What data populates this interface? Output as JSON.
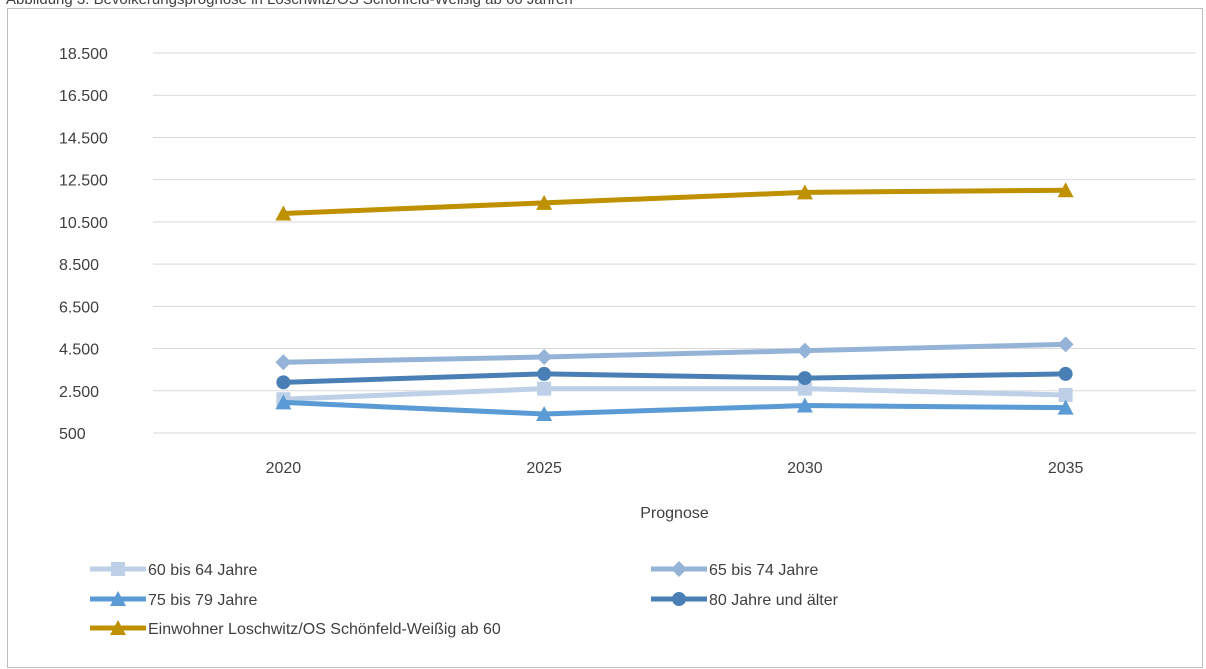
{
  "caption": "Abbildung 3: Bevölkerungsprognose in Loschwitz/OS Schönfeld-Weißig ab 60 Jahren",
  "chart_data": {
    "type": "line",
    "title": "",
    "xlabel": "Prognose",
    "ylabel": "",
    "x": [
      "2020",
      "2025",
      "2030",
      "2035"
    ],
    "ylim": [
      500,
      18500
    ],
    "yticks": [
      500,
      2500,
      4500,
      6500,
      8500,
      10500,
      12500,
      14500,
      16500,
      18500
    ],
    "ytick_labels": [
      "500",
      "2.500",
      "4.500",
      "6.500",
      "8.500",
      "10.500",
      "12.500",
      "14.500",
      "16.500",
      "18.500"
    ],
    "grid": "horizontal",
    "legend_position": "bottom",
    "series": [
      {
        "name": "60 bis 64 Jahre",
        "values": [
          2100,
          2600,
          2600,
          2300
        ],
        "color": "#bdd0e8",
        "marker": "square"
      },
      {
        "name": "65 bis 74 Jahre",
        "values": [
          3850,
          4100,
          4400,
          4700
        ],
        "color": "#95b3d7",
        "marker": "diamond"
      },
      {
        "name": "75 bis 79 Jahre",
        "values": [
          1950,
          1400,
          1800,
          1700
        ],
        "color": "#5b9bd5",
        "marker": "triangle"
      },
      {
        "name": "80 Jahre und älter",
        "values": [
          2900,
          3300,
          3100,
          3300
        ],
        "color": "#4a7fb5",
        "marker": "circle"
      },
      {
        "name": "Einwohner Loschwitz/OS Schönfeld-Weißig ab 60",
        "values": [
          10900,
          11400,
          11900,
          12000
        ],
        "color": "#bf9000",
        "marker": "triangle"
      }
    ]
  }
}
